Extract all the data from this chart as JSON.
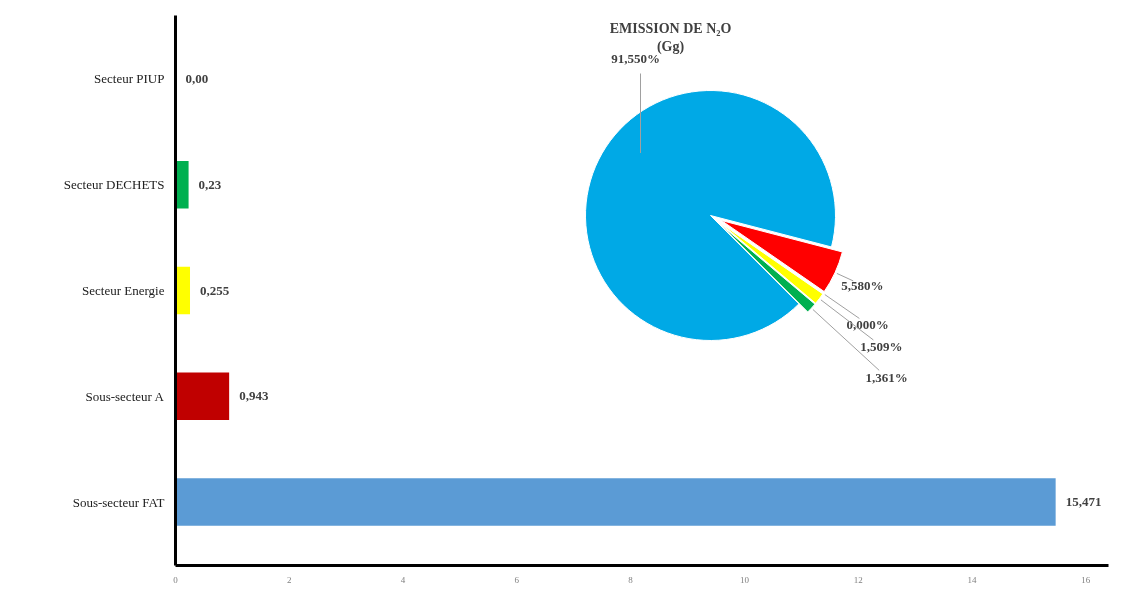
{
  "chart_data": [
    {
      "type": "bar",
      "orientation": "horizontal",
      "categories": [
        "Secteur PIUP",
        "Secteur DECHETS",
        "Secteur Energie",
        "Sous-secteur A",
        "Sous-secteur FAT"
      ],
      "values": [
        0.0,
        0.23,
        0.255,
        0.943,
        15.471
      ],
      "colors": [
        "#1f3864",
        "#00b050",
        "#ffff00",
        "#c00000",
        "#5b9bd5"
      ],
      "value_labels": [
        "0,00",
        "0,23",
        "0,255",
        "0,943",
        "15,471"
      ],
      "xlim": [
        0,
        16.4
      ],
      "xticks": [
        0,
        2,
        4,
        6,
        8,
        10,
        12,
        14,
        16
      ],
      "grid": false
    },
    {
      "type": "pie",
      "title": "EMISSION DE N₂O\n(Gg)",
      "categories": [
        null,
        null,
        null,
        null,
        null
      ],
      "values": [
        91.55,
        5.58,
        0.0,
        1.509,
        1.361
      ],
      "colors": [
        "#00a9e6",
        "#ff0000",
        "#1f3864",
        "#ffff00",
        "#00b050"
      ],
      "value_labels": [
        "91,550%",
        "5,580%",
        "0,000%",
        "1,509%",
        "1,361%"
      ]
    }
  ]
}
